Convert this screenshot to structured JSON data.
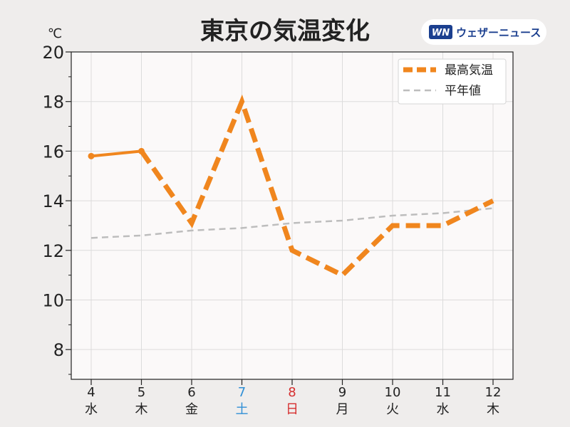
{
  "header": {
    "title": "東京の気温変化",
    "unit": "℃",
    "brand_name": "ウェザーニュース",
    "brand_mark": "WN"
  },
  "colors": {
    "page_background": "#efedec",
    "plot_background": "#fbf9f9",
    "max_temp": "#f0861e",
    "normal": "#bdbdbd",
    "saturday": "#2f8fd6",
    "sunday": "#d62f2f",
    "weekday": "#222222",
    "brand": "#1b3f8f"
  },
  "chart_data": {
    "type": "line",
    "title": "東京の気温変化",
    "ylabel": "℃",
    "ylim": [
      6.8,
      20
    ],
    "yticks": [
      8,
      10,
      12,
      14,
      16,
      18,
      20
    ],
    "grid": true,
    "legend_placement": "top-right",
    "categories": [
      {
        "day": "4",
        "weekday": "水"
      },
      {
        "day": "5",
        "weekday": "木"
      },
      {
        "day": "6",
        "weekday": "金"
      },
      {
        "day": "7",
        "weekday": "土"
      },
      {
        "day": "8",
        "weekday": "日"
      },
      {
        "day": "9",
        "weekday": "月"
      },
      {
        "day": "10",
        "weekday": "火"
      },
      {
        "day": "11",
        "weekday": "水"
      },
      {
        "day": "12",
        "weekday": "木"
      }
    ],
    "series": [
      {
        "name": "最高気温",
        "values": [
          15.8,
          16.0,
          13.1,
          18.0,
          12.0,
          11.0,
          13.0,
          13.0,
          14.0
        ],
        "observed_points": 2,
        "style": "solid for observed days, dashed for forecast"
      },
      {
        "name": "平年値",
        "values": [
          12.5,
          12.6,
          12.8,
          12.9,
          13.1,
          13.2,
          13.4,
          13.5,
          13.7
        ],
        "style": "dashed"
      }
    ]
  }
}
